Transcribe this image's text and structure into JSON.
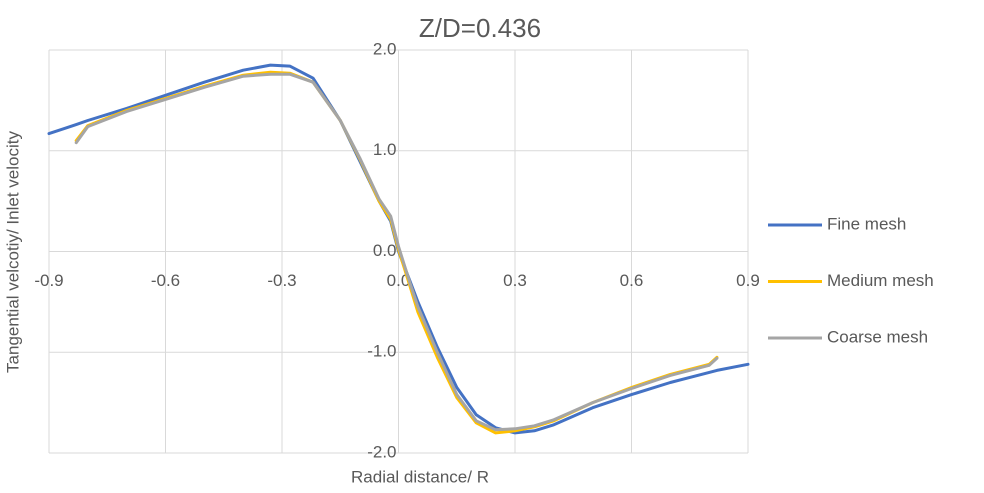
{
  "chart_data": {
    "type": "line",
    "title": "Z/D=0.436",
    "x_label": "Radial distance/ R",
    "y_label": "Tangential velcotiy/ Inlet velocity",
    "x": [
      -0.9,
      -0.83,
      -0.8,
      -0.7,
      -0.6,
      -0.5,
      -0.4,
      -0.33,
      -0.28,
      -0.22,
      -0.15,
      -0.1,
      -0.05,
      -0.02,
      0,
      0.03,
      0.05,
      0.1,
      0.15,
      0.2,
      0.25,
      0.3,
      0.35,
      0.4,
      0.5,
      0.6,
      0.7,
      0.8,
      0.82,
      0.9
    ],
    "series": [
      {
        "name": "Fine mesh",
        "color": "#4472c4",
        "values": [
          1.17,
          1.26,
          1.3,
          1.42,
          1.55,
          1.68,
          1.8,
          1.85,
          1.84,
          1.72,
          1.3,
          0.9,
          0.5,
          0.3,
          0.0,
          -0.3,
          -0.5,
          -0.95,
          -1.35,
          -1.62,
          -1.75,
          -1.8,
          -1.78,
          -1.72,
          -1.55,
          -1.42,
          -1.3,
          -1.2,
          -1.18,
          -1.12
        ]
      },
      {
        "name": "Medium mesh",
        "color": "#ffc000",
        "values": [
          null,
          1.1,
          1.25,
          1.4,
          1.52,
          1.64,
          1.75,
          1.78,
          1.77,
          1.68,
          1.3,
          0.92,
          0.5,
          0.32,
          0.02,
          -0.35,
          -0.6,
          -1.05,
          -1.45,
          -1.7,
          -1.8,
          -1.78,
          -1.74,
          -1.68,
          -1.5,
          -1.35,
          -1.22,
          -1.12,
          -1.05,
          null
        ]
      },
      {
        "name": "Coarse mesh",
        "color": "#a5a5a5",
        "values": [
          null,
          1.08,
          1.24,
          1.39,
          1.51,
          1.63,
          1.74,
          1.76,
          1.76,
          1.68,
          1.3,
          0.93,
          0.52,
          0.35,
          0.05,
          -0.32,
          -0.55,
          -1.0,
          -1.42,
          -1.68,
          -1.77,
          -1.76,
          -1.73,
          -1.67,
          -1.5,
          -1.36,
          -1.23,
          -1.13,
          -1.06,
          null
        ]
      }
    ],
    "xlim": [
      -0.9,
      0.9
    ],
    "ylim": [
      -2,
      2
    ],
    "xticks": [
      -0.9,
      -0.6,
      -0.3,
      {
        "value": 0,
        "label": "0.0"
      },
      0.3,
      0.6,
      0.9
    ],
    "yticks": [
      {
        "value": 2,
        "label": "2.0"
      },
      {
        "value": 1,
        "label": "1.0"
      },
      {
        "value": 0,
        "label": "0.0"
      },
      {
        "value": -1,
        "label": "-1.0"
      },
      {
        "value": -2,
        "label": "-2.0"
      }
    ],
    "grid": true,
    "legend": "right"
  }
}
